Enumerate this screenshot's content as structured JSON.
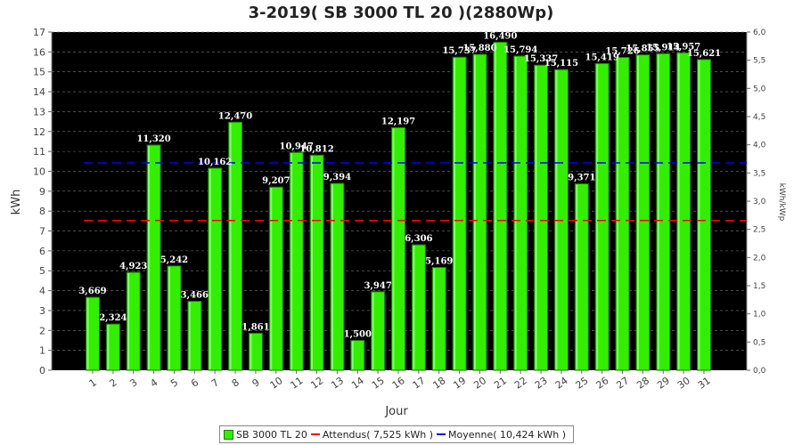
{
  "chart_data": {
    "type": "bar",
    "title": "3-2019( SB 3000 TL 20 )(2880Wp)",
    "xlabel": "Jour",
    "ylabel": "kWh",
    "y2label": "kWh/kWp",
    "ylim": [
      0,
      17
    ],
    "y2lim": [
      0,
      6
    ],
    "yticks": [
      "0",
      "1",
      "2",
      "3",
      "4",
      "5",
      "6",
      "7",
      "8",
      "9",
      "10",
      "11",
      "12",
      "13",
      "14",
      "15",
      "16",
      "17"
    ],
    "y2ticks": [
      "0,0",
      "0,5",
      "1,0",
      "1,5",
      "2,0",
      "2,5",
      "3,0",
      "3,5",
      "4,0",
      "4,5",
      "5,0",
      "5,5",
      "6,0"
    ],
    "categories": [
      "1",
      "2",
      "3",
      "4",
      "5",
      "6",
      "7",
      "8",
      "9",
      "10",
      "11",
      "12",
      "13",
      "14",
      "15",
      "16",
      "17",
      "18",
      "19",
      "20",
      "21",
      "22",
      "23",
      "24",
      "25",
      "26",
      "27",
      "28",
      "29",
      "30",
      "31"
    ],
    "series": [
      {
        "name": "SB 3000 TL 20",
        "color": "#33ee00",
        "values": [
          3.669,
          2.324,
          4.923,
          11.32,
          5.242,
          3.466,
          10.162,
          12.47,
          1.861,
          9.207,
          10.947,
          10.812,
          9.394,
          1.5,
          3.947,
          12.197,
          6.306,
          5.169,
          15.737,
          15.88,
          16.49,
          15.794,
          15.337,
          15.115,
          9.371,
          15.419,
          15.726,
          15.855,
          15.914,
          15.957,
          15.621
        ],
        "labels": [
          "3,669",
          "2,324",
          "4,923",
          "11,320",
          "5,242",
          "3,466",
          "10,162",
          "12,470",
          "1,861",
          "9,207",
          "10,947",
          "10,812",
          "9,394",
          "1,500",
          "3,947",
          "12,197",
          "6,306",
          "5,169",
          "15,737",
          "15,880",
          "16,490",
          "15,794",
          "15,337",
          "15,115",
          "9,371",
          "15,419",
          "15,726",
          "15,855",
          "15,914",
          "15,957",
          "15,621"
        ]
      }
    ],
    "reference_lines": [
      {
        "name": "Attendus",
        "value": 7.525,
        "color": "#ff0000",
        "legend": "Attendus( 7,525 kWh )"
      },
      {
        "name": "Moyenne",
        "value": 10.424,
        "color": "#0000ff",
        "legend": "Moyenne( 10,424 kWh )"
      }
    ],
    "grid": true,
    "background": "#000000",
    "legend_position": "bottom"
  }
}
